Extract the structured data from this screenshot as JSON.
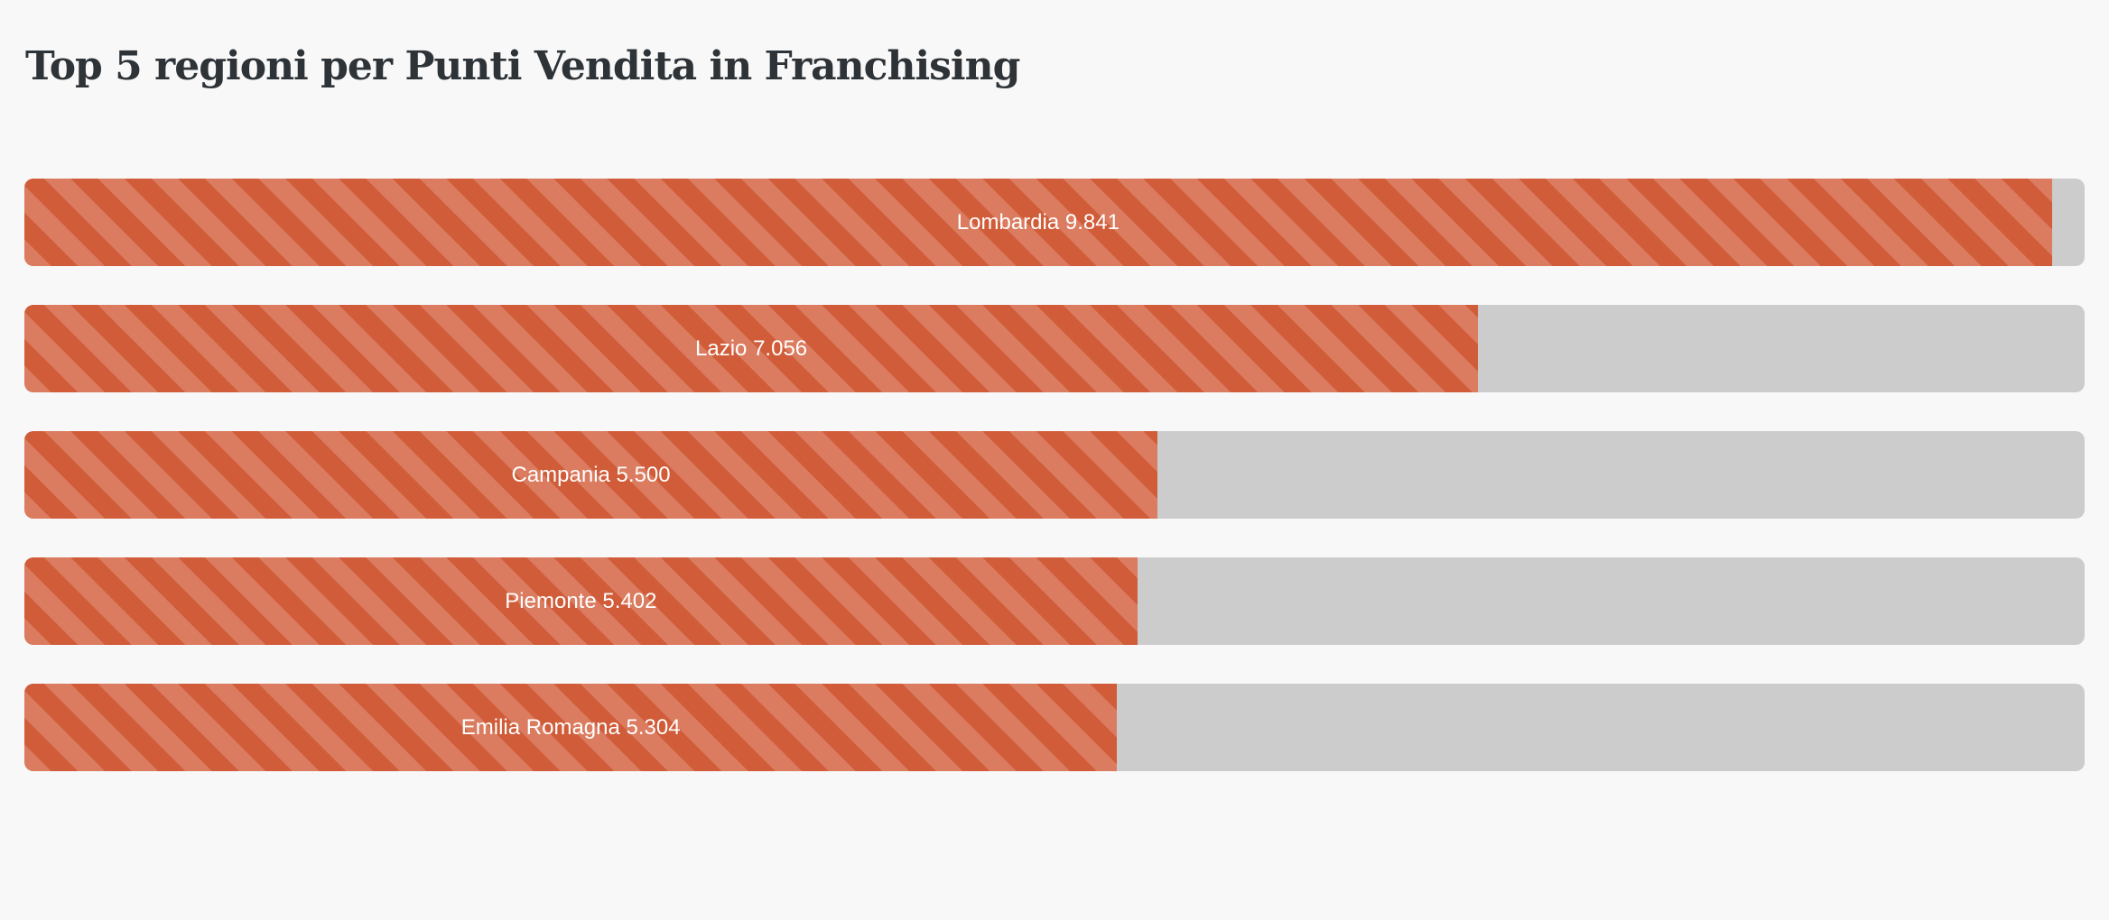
{
  "page": {
    "background": "#f8f8f8"
  },
  "header": {
    "title": "Top 5 regioni per Punti Vendita in Franchising"
  },
  "chart_data": {
    "type": "bar",
    "orientation": "horizontal",
    "title": "Top 5 regioni per Punti Vendita in Franchising",
    "categories": [
      "Lombardia",
      "Lazio",
      "Campania",
      "Piemonte",
      "Emilia Romagna"
    ],
    "values": [
      9841,
      7056,
      5500,
      5402,
      5304
    ],
    "value_labels": [
      "9.841",
      "7.056",
      "5.500",
      "5.402",
      "5.304"
    ],
    "bar_labels": [
      "Lombardia 9.841",
      "Lazio 7.056",
      "Campania 5.500",
      "Piemonte 5.402",
      "Emilia Romagna 5.304"
    ],
    "xlim": [
      0,
      10000
    ],
    "xlabel": "",
    "ylabel": "",
    "grid": false,
    "legend": "none",
    "label_position": "center-of-fill",
    "fill_style": "diagonal-stripes",
    "colors": {
      "stripe_dark": "#d05c39",
      "stripe_light": "#db7b5f",
      "track": "#cccccc",
      "label_text": "#ffffff",
      "title_text": "#2e3338",
      "page_background": "#f8f8f8"
    }
  }
}
